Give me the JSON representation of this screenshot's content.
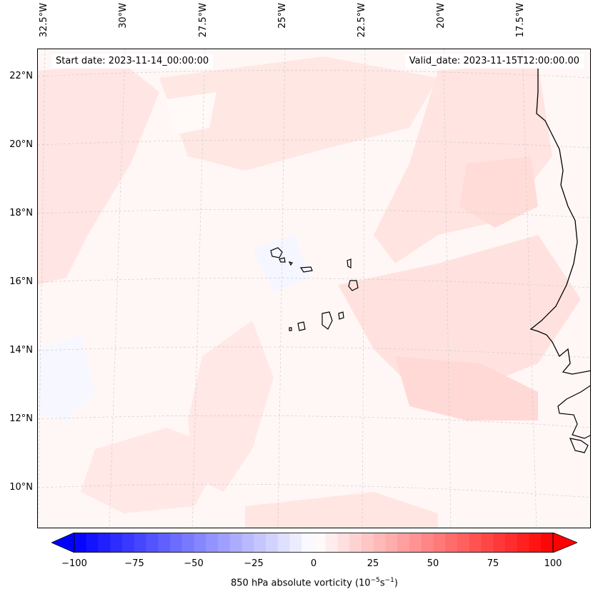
{
  "map": {
    "start_label": "Start date: 2023-11-14_00:00:00",
    "valid_label": "Valid_date: 2023-11-15T12:00:00.00",
    "lat_labels": [
      "22°N",
      "20°N",
      "18°N",
      "16°N",
      "14°N",
      "12°N",
      "10°N"
    ],
    "lon_labels": [
      "32.5°W",
      "30°W",
      "27.5°W",
      "25°W",
      "22.5°W",
      "20°W",
      "17.5°W"
    ],
    "region": "Cape Verde / West Africa coast",
    "projection_grid": "dashed-light-gray"
  },
  "colorbar": {
    "label": "850 hPa absolute vorticity (10",
    "label_exp": "−5",
    "label_mid": "s",
    "label_exp2": "−1",
    "label_end": ")",
    "ticks": [
      "−100",
      "−75",
      "−50",
      "−25",
      "0",
      "25",
      "50",
      "75",
      "100"
    ],
    "min": -100,
    "max": 100,
    "low_color": "#0000ff",
    "high_color": "#ff0000"
  },
  "colors": {
    "background": "#fff7f6",
    "positive_light": "#ffe6e4",
    "positive_mid": "#ffdad6",
    "negative_light": "#f4f6ff",
    "coastline": "#000000"
  }
}
